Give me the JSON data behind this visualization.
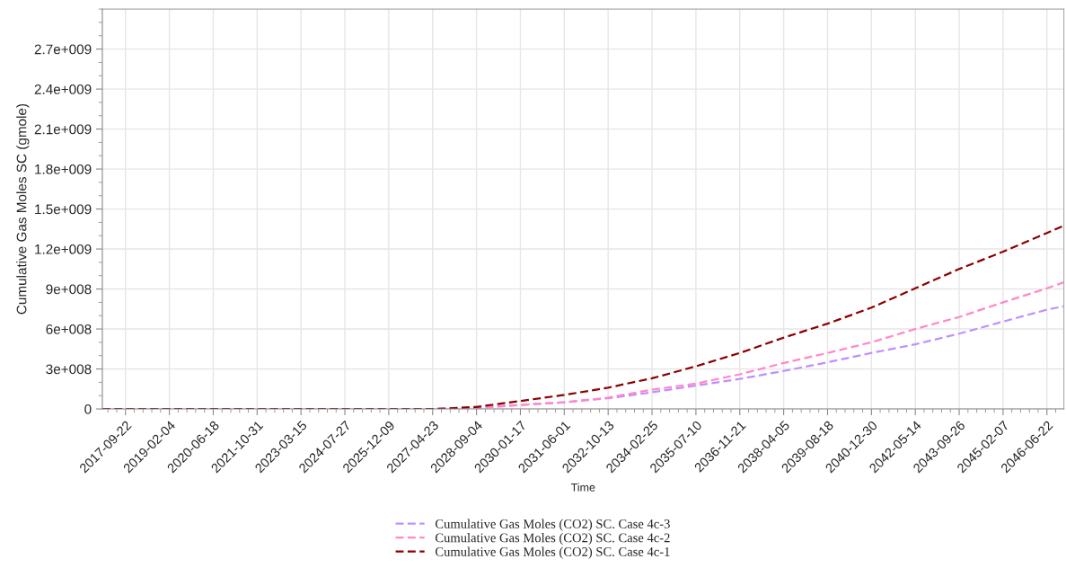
{
  "chart_data": {
    "type": "line",
    "xlabel": "Time",
    "ylabel": "Cumulative Gas Moles SC (gmole)",
    "xlim": [
      "2017-01-01",
      "2047-01-01"
    ],
    "xticks": [
      "2017-09-22",
      "2019-02-04",
      "2020-06-18",
      "2021-10-31",
      "2023-03-15",
      "2024-07-27",
      "2025-12-09",
      "2027-04-23",
      "2028-09-04",
      "2030-01-17",
      "2031-06-01",
      "2032-10-13",
      "2034-02-25",
      "2035-07-10",
      "2036-11-21",
      "2038-04-05",
      "2039-08-18",
      "2040-12-30",
      "2042-05-14",
      "2043-09-26",
      "2045-02-07",
      "2046-06-22"
    ],
    "ylim": [
      0,
      3000000000
    ],
    "yticks": [
      0,
      {
        "value": 300000000,
        "label": "3e+008"
      },
      {
        "value": 600000000,
        "label": "6e+008"
      },
      {
        "value": 900000000,
        "label": "9e+008"
      },
      {
        "value": 1200000000,
        "label": "1.2e+009"
      },
      {
        "value": 1500000000,
        "label": "1.5e+009"
      },
      {
        "value": 1800000000,
        "label": "1.8e+009"
      },
      {
        "value": 2100000000,
        "label": "2.1e+009"
      },
      {
        "value": 2400000000,
        "label": "2.4e+009"
      },
      {
        "value": 2700000000,
        "label": "2.7e+009"
      }
    ],
    "grid": true,
    "legend": "bottom",
    "line_style": "dashed",
    "marker": "none",
    "x": [
      "2017-01-01",
      "2027-06-01",
      "2028-09-04",
      "2030-01-17",
      "2031-06-01",
      "2032-10-13",
      "2034-02-25",
      "2035-07-10",
      "2036-11-21",
      "2038-04-05",
      "2039-08-18",
      "2040-12-30",
      "2042-05-14",
      "2043-09-26",
      "2045-02-07",
      "2046-06-22",
      "2046-12-31"
    ],
    "series": [
      {
        "name": "Cumulative Gas Moles (CO2) SC. Case 4c-3",
        "color": "#bf8fff",
        "values": [
          0,
          0,
          null,
          30000000,
          50000000,
          80000000,
          125000000,
          175000000,
          225000000,
          285000000,
          350000000,
          420000000,
          485000000,
          565000000,
          655000000,
          745000000,
          770000000
        ]
      },
      {
        "name": "Cumulative Gas Moles (CO2) SC. Case 4c-2",
        "color": "#ff88c8",
        "values": [
          0,
          0,
          5000000,
          30000000,
          50000000,
          85000000,
          145000000,
          190000000,
          260000000,
          345000000,
          420000000,
          500000000,
          600000000,
          690000000,
          800000000,
          905000000,
          950000000
        ]
      },
      {
        "name": "Cumulative Gas Moles (CO2) SC. Case 4c-1",
        "color": "#8b0000",
        "values": [
          0,
          0,
          15000000,
          60000000,
          105000000,
          160000000,
          230000000,
          320000000,
          420000000,
          535000000,
          640000000,
          760000000,
          905000000,
          1050000000,
          1180000000,
          1320000000,
          1375000000
        ]
      }
    ]
  }
}
